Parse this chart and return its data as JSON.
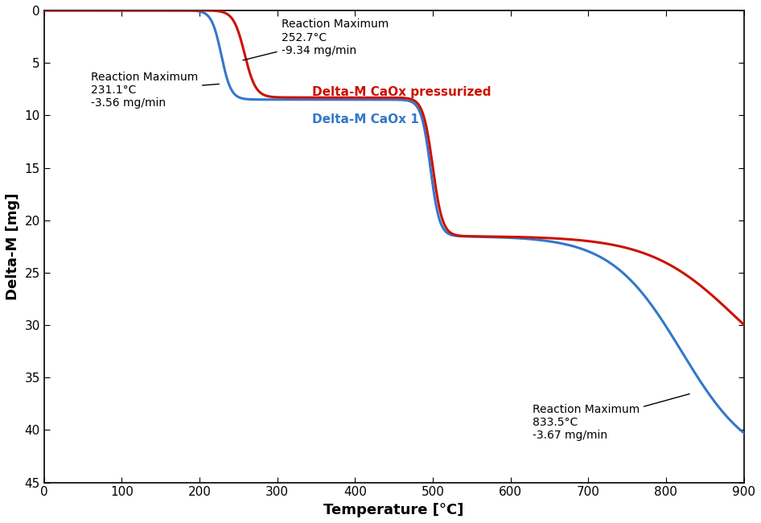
{
  "title": "",
  "xlabel": "Temperature [°C]",
  "ylabel": "Delta-M [mg]",
  "xlim": [
    0,
    900
  ],
  "ylim": [
    45,
    0
  ],
  "yticks": [
    0,
    5,
    10,
    15,
    20,
    25,
    30,
    35,
    40,
    45
  ],
  "xticks": [
    0,
    100,
    200,
    300,
    400,
    500,
    600,
    700,
    800,
    900
  ],
  "blue_color": "#3377CC",
  "red_color": "#CC1100",
  "label_blue": "Delta-M CaOx 1",
  "label_red": "Delta-M CaOx pressurized",
  "ann1_title": "Reaction Maximum",
  "ann1_sub1": "252.7°C",
  "ann1_sub2": "-9.34 mg/min",
  "ann2_title": "Reaction Maximum",
  "ann2_sub1": "231.1°C",
  "ann2_sub2": "-3.56 mg/min",
  "ann3_title": "Reaction Maximum",
  "ann3_sub1": "833.5°C",
  "ann3_sub2": "-3.67 mg/min",
  "background_color": "#FFFFFF",
  "fontsize_axis_label": 13,
  "fontsize_tick": 11,
  "fontsize_annotation": 10,
  "linewidth": 2.2
}
